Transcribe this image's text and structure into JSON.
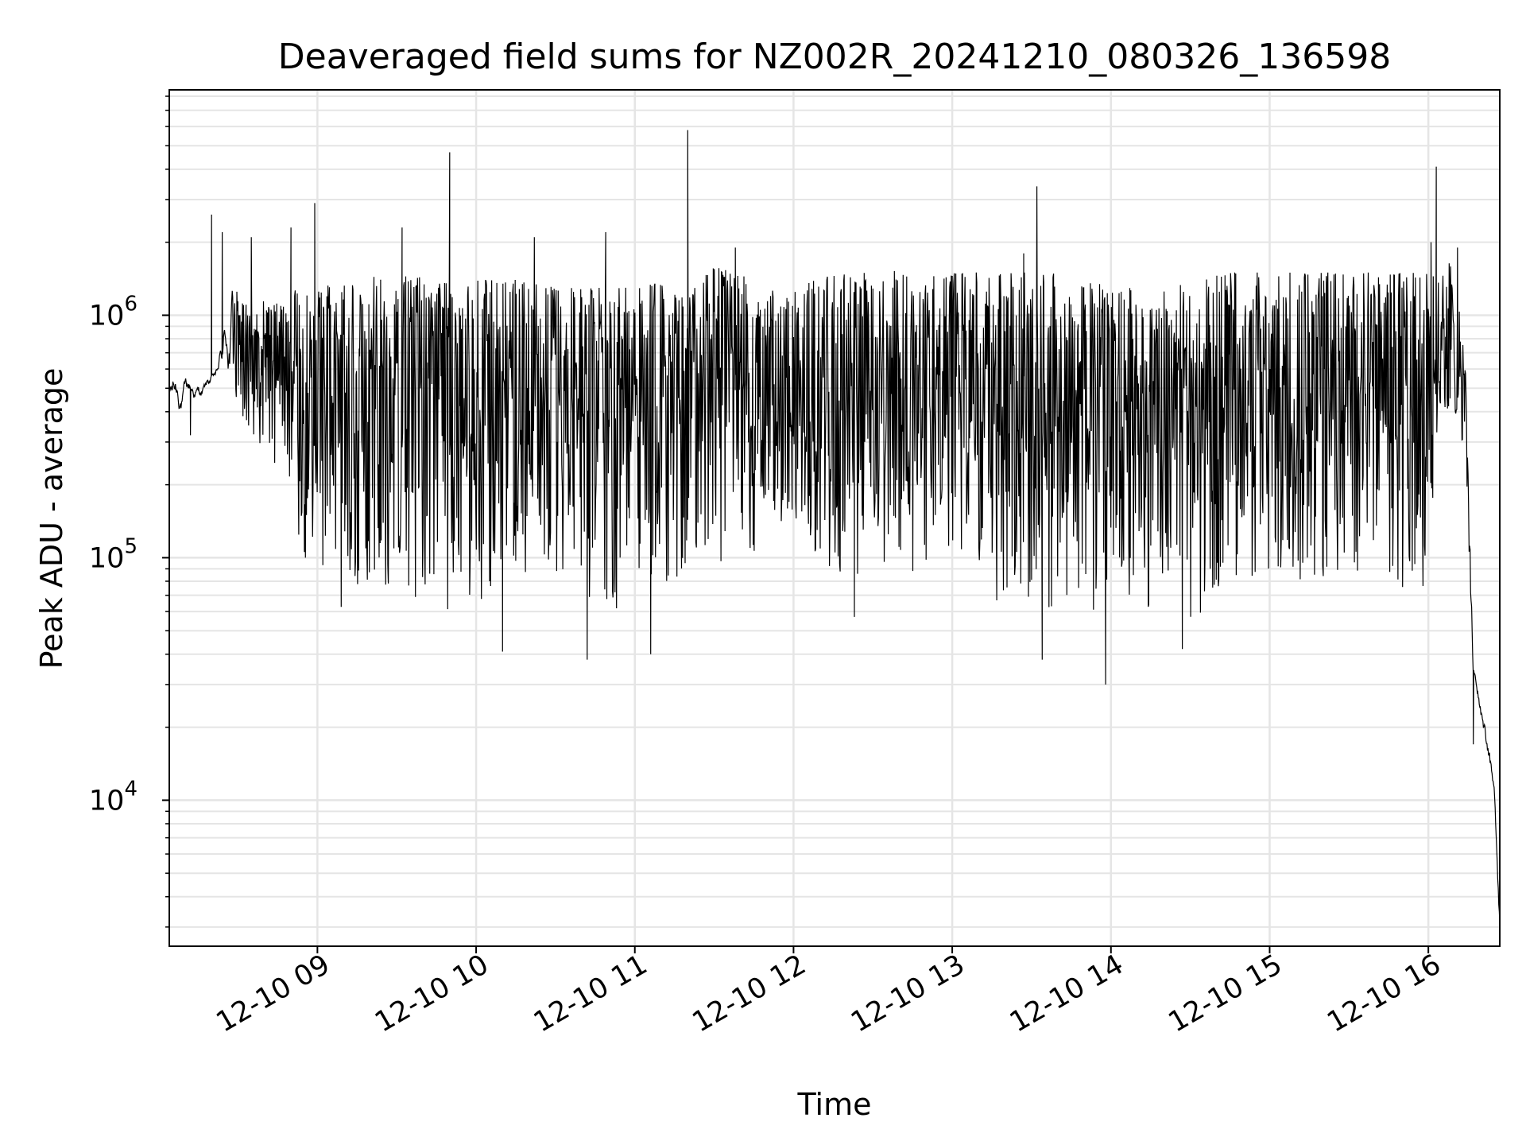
{
  "chart_data": {
    "type": "line",
    "title": "Deaveraged field sums for NZ002R_20241210_080326_136598",
    "xlabel": "Time",
    "ylabel": "Peak ADU - average",
    "yscale": "log",
    "ylim": [
      2500,
      8500000
    ],
    "xlim": [
      "2024-12-10 08:04",
      "2024-12-10 16:27"
    ],
    "grid": true,
    "line_color": "#000000",
    "grid_color": "#e5e5e5",
    "x_ticks": [
      {
        "value": "2024-12-10 09:00",
        "label": "12-10 09"
      },
      {
        "value": "2024-12-10 10:00",
        "label": "12-10 10"
      },
      {
        "value": "2024-12-10 11:00",
        "label": "12-10 11"
      },
      {
        "value": "2024-12-10 12:00",
        "label": "12-10 12"
      },
      {
        "value": "2024-12-10 13:00",
        "label": "12-10 13"
      },
      {
        "value": "2024-12-10 14:00",
        "label": "12-10 14"
      },
      {
        "value": "2024-12-10 15:00",
        "label": "12-10 15"
      },
      {
        "value": "2024-12-10 16:00",
        "label": "12-10 16"
      }
    ],
    "y_ticks": [
      {
        "value": 10000,
        "base": "10",
        "exp": "4"
      },
      {
        "value": 100000,
        "base": "10",
        "exp": "5"
      },
      {
        "value": 1000000,
        "base": "10",
        "exp": "6"
      }
    ],
    "envelope": {
      "x": [
        "2024-12-10 08:04",
        "2024-12-10 08:10",
        "2024-12-10 08:16",
        "2024-12-10 08:22",
        "2024-12-10 08:28",
        "2024-12-10 08:35",
        "2024-12-10 08:45",
        "2024-12-10 08:55",
        "2024-12-10 09:05",
        "2024-12-10 09:15",
        "2024-12-10 09:30",
        "2024-12-10 09:45",
        "2024-12-10 10:00",
        "2024-12-10 10:15",
        "2024-12-10 10:30",
        "2024-12-10 10:45",
        "2024-12-10 11:00",
        "2024-12-10 11:15",
        "2024-12-10 11:20",
        "2024-12-10 11:30",
        "2024-12-10 11:45",
        "2024-12-10 12:00",
        "2024-12-10 12:15",
        "2024-12-10 12:30",
        "2024-12-10 12:45",
        "2024-12-10 13:00",
        "2024-12-10 13:15",
        "2024-12-10 13:30",
        "2024-12-10 13:45",
        "2024-12-10 14:00",
        "2024-12-10 14:15",
        "2024-12-10 14:30",
        "2024-12-10 14:45",
        "2024-12-10 15:00",
        "2024-12-10 15:15",
        "2024-12-10 15:30",
        "2024-12-10 15:45",
        "2024-12-10 16:00",
        "2024-12-10 16:05",
        "2024-12-10 16:10",
        "2024-12-10 16:14",
        "2024-12-10 16:17",
        "2024-12-10 16:20",
        "2024-12-10 16:23",
        "2024-12-10 16:25",
        "2024-12-10 16:27"
      ],
      "low": [
        350000,
        400000,
        420000,
        500000,
        350000,
        300000,
        200000,
        90000,
        60000,
        55000,
        55000,
        55000,
        55000,
        50000,
        55000,
        50000,
        55000,
        60000,
        60000,
        90000,
        100000,
        100000,
        80000,
        75000,
        75000,
        80000,
        60000,
        50000,
        50000,
        50000,
        60000,
        50000,
        55000,
        60000,
        60000,
        60000,
        55000,
        70000,
        350000,
        300000,
        250000,
        30000,
        20000,
        15000,
        9000,
        3000
      ],
      "high": [
        600000,
        550000,
        500000,
        600000,
        1300000,
        1100000,
        1200000,
        1300000,
        1400000,
        1400000,
        1500000,
        1400000,
        1400000,
        1400000,
        1300000,
        1300000,
        1300000,
        1400000,
        1200000,
        1600000,
        1400000,
        1300000,
        1500000,
        1500000,
        1600000,
        1500000,
        1500000,
        1500000,
        1500000,
        1300000,
        1300000,
        1400000,
        1500000,
        1500000,
        1500000,
        1500000,
        1500000,
        1500000,
        1700000,
        1600000,
        600000,
        35000,
        26000,
        22000,
        12000,
        5000
      ],
      "low_seg": [
        0,
        0,
        0,
        0,
        1,
        1,
        1,
        2,
        2,
        2,
        2,
        2,
        2,
        2,
        2,
        2,
        2,
        2,
        2,
        3,
        3,
        3,
        3,
        3,
        3,
        3,
        3,
        3,
        3,
        3,
        3,
        3,
        3,
        3,
        3,
        3,
        3,
        3,
        4,
        4,
        4,
        5,
        5,
        5,
        5,
        5
      ]
    },
    "spikes": [
      {
        "x": "2024-12-10 08:20",
        "y": 2600000
      },
      {
        "x": "2024-12-10 08:24",
        "y": 2200000
      },
      {
        "x": "2024-12-10 08:35",
        "y": 2100000
      },
      {
        "x": "2024-12-10 08:50",
        "y": 2300000
      },
      {
        "x": "2024-12-10 08:59",
        "y": 2900000
      },
      {
        "x": "2024-12-10 09:32",
        "y": 2300000
      },
      {
        "x": "2024-12-10 09:50",
        "y": 4700000
      },
      {
        "x": "2024-12-10 10:22",
        "y": 2100000
      },
      {
        "x": "2024-12-10 10:49",
        "y": 2200000
      },
      {
        "x": "2024-12-10 11:20",
        "y": 5800000
      },
      {
        "x": "2024-12-10 11:38",
        "y": 1900000
      },
      {
        "x": "2024-12-10 13:32",
        "y": 3400000
      },
      {
        "x": "2024-12-10 13:27",
        "y": 1800000
      },
      {
        "x": "2024-12-10 16:03",
        "y": 4100000
      },
      {
        "x": "2024-12-10 16:01",
        "y": 2000000
      },
      {
        "x": "2024-12-10 16:11",
        "y": 1900000
      }
    ],
    "dips": [
      {
        "x": "2024-12-10 08:12",
        "y": 320000
      },
      {
        "x": "2024-12-10 10:10",
        "y": 41000
      },
      {
        "x": "2024-12-10 10:42",
        "y": 38000
      },
      {
        "x": "2024-12-10 11:06",
        "y": 40000
      },
      {
        "x": "2024-12-10 12:23",
        "y": 57000
      },
      {
        "x": "2024-12-10 13:34",
        "y": 38000
      },
      {
        "x": "2024-12-10 13:58",
        "y": 30000
      },
      {
        "x": "2024-12-10 14:27",
        "y": 42000
      },
      {
        "x": "2024-12-10 16:17",
        "y": 17000
      }
    ]
  }
}
